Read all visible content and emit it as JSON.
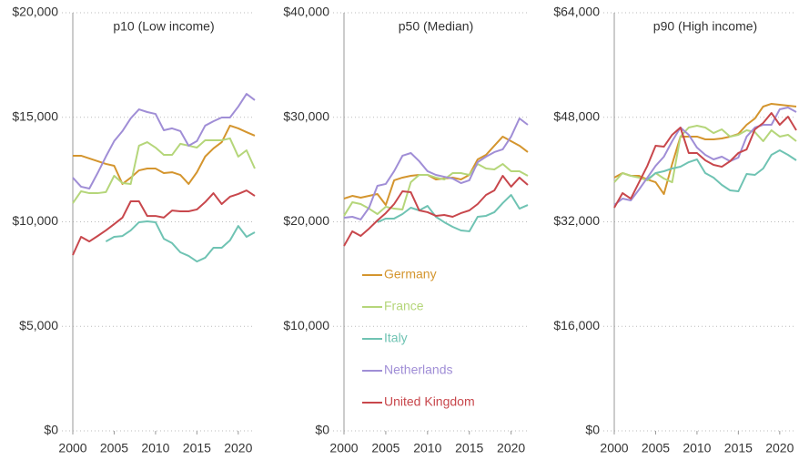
{
  "chart_data": [
    {
      "type": "line",
      "title": "p10 (Low income)",
      "x": [
        2000,
        2001,
        2002,
        2003,
        2004,
        2005,
        2006,
        2007,
        2008,
        2009,
        2010,
        2011,
        2012,
        2013,
        2014,
        2015,
        2016,
        2017,
        2018,
        2019,
        2020,
        2021,
        2022
      ],
      "xlim": [
        2000,
        2022
      ],
      "xticks": [
        2000,
        2005,
        2010,
        2015,
        2020
      ],
      "ylim": [
        0,
        20000
      ],
      "yticks": [
        {
          "value": 0,
          "label": "$0"
        },
        {
          "value": 5000,
          "label": "$5,000"
        },
        {
          "value": 10000,
          "label": "$10,000"
        },
        {
          "value": 15000,
          "label": "$15,000"
        },
        {
          "value": 20000,
          "label": "$20,000"
        }
      ],
      "grid": true,
      "series": [
        {
          "color": "#d4952e",
          "values": [
            13160,
            13160,
            13030,
            12900,
            12770,
            12680,
            11810,
            12110,
            12460,
            12550,
            12550,
            12330,
            12370,
            12240,
            11810,
            12370,
            13120,
            13510,
            13810,
            14600,
            14470,
            14290,
            14120
          ]
        },
        {
          "color": "#b5d67a",
          "values": [
            10890,
            11460,
            11370,
            11370,
            11420,
            12200,
            11850,
            11810,
            13640,
            13810,
            13550,
            13200,
            13200,
            13730,
            13640,
            13550,
            13900,
            13900,
            13900,
            13990,
            13120,
            13420,
            12550
          ]
        },
        {
          "color": "#6fc3b3",
          "values": [
            null,
            null,
            null,
            null,
            9060,
            9280,
            9320,
            9590,
            9980,
            10020,
            9980,
            9190,
            8980,
            8540,
            8370,
            8100,
            8280,
            8760,
            8760,
            9110,
            9800,
            9280,
            9500
          ]
        },
        {
          "color": "#a08ed6",
          "values": [
            12110,
            11680,
            11590,
            12330,
            13120,
            13860,
            14340,
            14950,
            15380,
            15250,
            15160,
            14380,
            14470,
            14340,
            13640,
            13860,
            14600,
            14810,
            14990,
            14990,
            15510,
            16120,
            15820
          ]
        },
        {
          "color": "#c8474c",
          "values": [
            8410,
            9280,
            9060,
            9320,
            9590,
            9890,
            10200,
            10980,
            10980,
            10280,
            10280,
            10200,
            10540,
            10500,
            10500,
            10590,
            10940,
            11370,
            10850,
            11200,
            11330,
            11500,
            11240
          ]
        }
      ]
    },
    {
      "type": "line",
      "title": "p50 (Median)",
      "x": [
        2000,
        2001,
        2002,
        2003,
        2004,
        2005,
        2006,
        2007,
        2008,
        2009,
        2010,
        2011,
        2012,
        2013,
        2014,
        2015,
        2016,
        2017,
        2018,
        2019,
        2020,
        2021,
        2022
      ],
      "xlim": [
        2000,
        2022
      ],
      "xticks": [
        2000,
        2005,
        2010,
        2015,
        2020
      ],
      "ylim": [
        0,
        40000
      ],
      "yticks": [
        {
          "value": 0,
          "label": "$0"
        },
        {
          "value": 10000,
          "label": "$10,000"
        },
        {
          "value": 20000,
          "label": "$20,000"
        },
        {
          "value": 30000,
          "label": "$30,000"
        },
        {
          "value": 40000,
          "label": "$40,000"
        }
      ],
      "grid": true,
      "series": [
        {
          "name": "Germany",
          "color": "#d4952e",
          "values": [
            22220,
            22480,
            22310,
            22480,
            22660,
            21610,
            23970,
            24230,
            24400,
            24490,
            24490,
            24050,
            24140,
            24230,
            24050,
            24490,
            25970,
            26400,
            27280,
            28150,
            27710,
            27280,
            26670
          ]
        },
        {
          "name": "France",
          "color": "#b5d67a",
          "values": [
            20570,
            21870,
            21700,
            21260,
            20740,
            21440,
            21260,
            21180,
            23790,
            24490,
            24490,
            24230,
            24050,
            24660,
            24660,
            24490,
            25530,
            25100,
            25010,
            25530,
            24840,
            24840,
            24400
          ]
        },
        {
          "name": "Italy",
          "color": "#6fc3b3",
          "values": [
            null,
            null,
            null,
            null,
            19960,
            20310,
            20310,
            20740,
            21350,
            21090,
            21520,
            20480,
            19960,
            19520,
            19170,
            19090,
            20480,
            20570,
            20920,
            21790,
            22570,
            21260,
            21610
          ]
        },
        {
          "name": "Netherlands",
          "color": "#a08ed6",
          "values": [
            20390,
            20480,
            20220,
            21350,
            23440,
            23620,
            24840,
            26320,
            26580,
            25800,
            24840,
            24490,
            24310,
            24140,
            23700,
            23970,
            25710,
            26230,
            26670,
            26930,
            28150,
            29890,
            29280
          ]
        },
        {
          "name": "United Kingdom",
          "color": "#c8474c",
          "values": [
            17690,
            19090,
            18650,
            19350,
            20130,
            20830,
            21700,
            22920,
            22830,
            21090,
            20920,
            20570,
            20650,
            20480,
            20830,
            21090,
            21700,
            22570,
            23010,
            24400,
            23360,
            24230,
            23530
          ]
        }
      ]
    },
    {
      "type": "line",
      "title": "p90 (High income)",
      "x": [
        2000,
        2001,
        2002,
        2003,
        2004,
        2005,
        2006,
        2007,
        2008,
        2009,
        2010,
        2011,
        2012,
        2013,
        2014,
        2015,
        2016,
        2017,
        2018,
        2019,
        2020,
        2021,
        2022
      ],
      "xlim": [
        2000,
        2022
      ],
      "xticks": [
        2000,
        2005,
        2010,
        2015,
        2020
      ],
      "ylim": [
        0,
        64000
      ],
      "yticks": [
        {
          "value": 0,
          "label": "$0"
        },
        {
          "value": 16000,
          "label": "$16,000"
        },
        {
          "value": 32000,
          "label": "$32,000"
        },
        {
          "value": 48000,
          "label": "$48,000"
        },
        {
          "value": 64000,
          "label": "$64,000"
        }
      ],
      "grid": true,
      "series": [
        {
          "color": "#d4952e",
          "values": [
            38760,
            39460,
            39040,
            39040,
            38480,
            38060,
            36250,
            40850,
            45040,
            45040,
            45040,
            44620,
            44620,
            44760,
            45040,
            45450,
            46850,
            47820,
            49640,
            50060,
            49920,
            49780,
            49640
          ]
        },
        {
          "color": "#b5d67a",
          "values": [
            38060,
            39460,
            39040,
            38760,
            38340,
            39460,
            38620,
            38060,
            45040,
            46430,
            46710,
            46430,
            45590,
            46150,
            45040,
            45320,
            46010,
            45730,
            44340,
            46010,
            45040,
            45320,
            44340
          ]
        },
        {
          "color": "#6fc3b3",
          "values": [
            null,
            null,
            null,
            null,
            38480,
            39460,
            39740,
            40160,
            40430,
            41130,
            41550,
            39460,
            38760,
            37650,
            36810,
            36670,
            39320,
            39180,
            40160,
            42250,
            42940,
            42250,
            41410
          ]
        },
        {
          "color": "#a08ed6",
          "values": [
            34580,
            35550,
            35280,
            36950,
            38760,
            40570,
            41970,
            44340,
            46430,
            45320,
            43360,
            42250,
            41550,
            41970,
            41270,
            41830,
            45040,
            46430,
            46850,
            46850,
            49220,
            49500,
            48800
          ]
        },
        {
          "color": "#c8474c",
          "values": [
            34160,
            36390,
            35550,
            38060,
            40570,
            43640,
            43500,
            45320,
            46430,
            42530,
            42530,
            41410,
            40710,
            40430,
            41270,
            42530,
            43080,
            46150,
            47130,
            48660,
            46850,
            48100,
            46010
          ]
        }
      ]
    }
  ]
}
